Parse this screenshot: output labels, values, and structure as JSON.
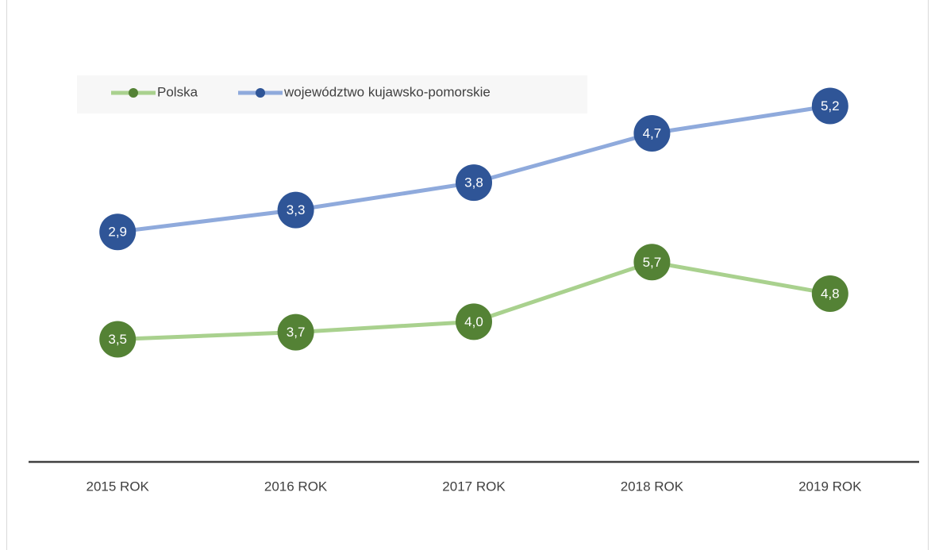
{
  "chart_data": {
    "type": "line",
    "categories": [
      "2015 ROK",
      "2016 ROK",
      "2017 ROK",
      "2018 ROK",
      "2019 ROK"
    ],
    "series": [
      {
        "name": "Polska",
        "color": "#a9d18e",
        "marker_color": "#548235",
        "values": [
          3.5,
          3.7,
          4.0,
          5.7,
          4.8
        ],
        "value_labels": [
          "3,5",
          "3,7",
          "4,0",
          "5,7",
          "4,8"
        ]
      },
      {
        "name": "województwo kujawsko-pomorskie",
        "color": "#8faadc",
        "marker_color": "#2f5597",
        "axis": "y2",
        "values": [
          2.9,
          3.3,
          3.8,
          4.7,
          5.2
        ],
        "value_labels": [
          "2,9",
          "3,3",
          "3,8",
          "4,7",
          "5,2"
        ]
      }
    ],
    "ylim": [
      0,
      12.5
    ],
    "y2lim": [
      -1.3,
      6.7
    ],
    "grid": false,
    "legend": "top-left"
  }
}
